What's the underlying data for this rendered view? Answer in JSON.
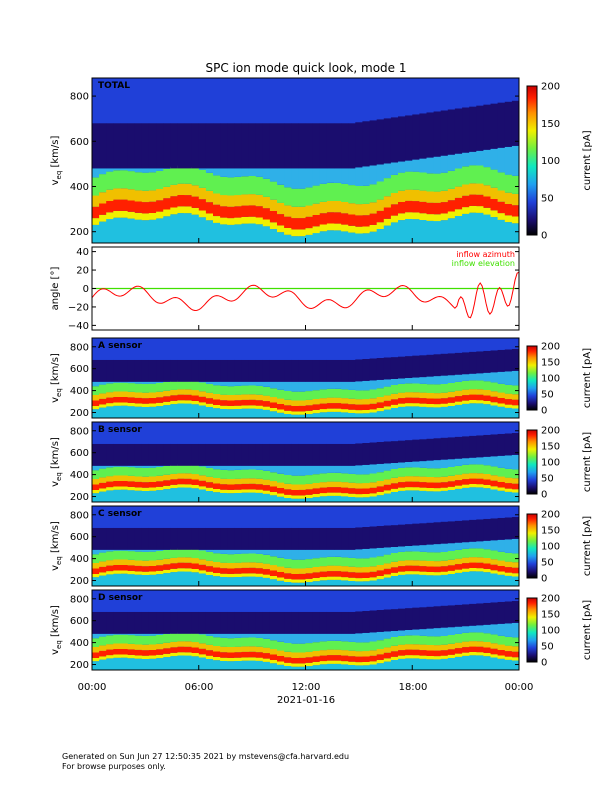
{
  "title": "SPC ion mode quick look, mode 1",
  "chart_data": {
    "type": "heatmap",
    "x": {
      "ticks": [
        "00:00",
        "06:00",
        "12:00",
        "18:00",
        "00:00"
      ],
      "date_label": "2021-01-16",
      "range_hours": [
        0,
        24
      ]
    },
    "colorbar": {
      "label": "current [pA]",
      "range": [
        0,
        200
      ],
      "ticks_top": [
        "0",
        "50",
        "100",
        "150",
        "200"
      ],
      "ticks_sensor": [
        "0",
        "50",
        "100",
        "150",
        "200"
      ],
      "colors": [
        "#000000",
        "#1a0d6e",
        "#2040d8",
        "#20a0f0",
        "#10e8c0",
        "#70f040",
        "#f0f000",
        "#ff9000",
        "#ff2000",
        "#c80000"
      ]
    },
    "panels": [
      {
        "label": "TOTAL",
        "ylabel": "v",
        "ylabel_sub": "eq",
        "yunit": "[km/s]",
        "ylim": [
          150,
          880
        ],
        "yticks": [
          "200",
          "400",
          "600",
          "800"
        ],
        "ytick_values": [
          200,
          400,
          600,
          800
        ]
      },
      {
        "label": "",
        "ylabel": "angle [°]",
        "ylim": [
          -45,
          45
        ],
        "yticks": [
          "−40",
          "−20",
          "0",
          "20",
          "40"
        ],
        "ytick_values": [
          -40,
          -20,
          0,
          20,
          40
        ],
        "series": [
          {
            "name": "inflow azimuth",
            "color": "#ff0000"
          },
          {
            "name": "inflow elevation",
            "color": "#40e000"
          }
        ]
      },
      {
        "label": "A sensor",
        "ylabel": "v",
        "ylabel_sub": "eq",
        "yunit": "[km/s]",
        "ylim": [
          150,
          880
        ],
        "yticks": [
          "200",
          "400",
          "600",
          "800"
        ],
        "ytick_values": [
          200,
          400,
          600,
          800
        ]
      },
      {
        "label": "B sensor",
        "ylabel": "v",
        "ylabel_sub": "eq",
        "yunit": "[km/s]",
        "ylim": [
          150,
          880
        ],
        "yticks": [
          "200",
          "400",
          "600",
          "800"
        ],
        "ytick_values": [
          200,
          400,
          600,
          800
        ]
      },
      {
        "label": "C sensor",
        "ylabel": "v",
        "ylabel_sub": "eq",
        "yunit": "[km/s]",
        "ylim": [
          150,
          880
        ],
        "yticks": [
          "200",
          "400",
          "600",
          "800"
        ],
        "ytick_values": [
          200,
          400,
          600,
          800
        ]
      },
      {
        "label": "D sensor",
        "ylabel": "v",
        "ylabel_sub": "eq",
        "yunit": "[km/s]",
        "ylim": [
          150,
          880
        ],
        "yticks": [
          "200",
          "400",
          "600",
          "800"
        ],
        "ytick_values": [
          200,
          400,
          600,
          800
        ]
      }
    ]
  },
  "footer": {
    "line1": "Generated on Sun Jun 27 12:50:35 2021 by mstevens@cfa.harvard.edu",
    "line2": "For browse purposes only."
  }
}
